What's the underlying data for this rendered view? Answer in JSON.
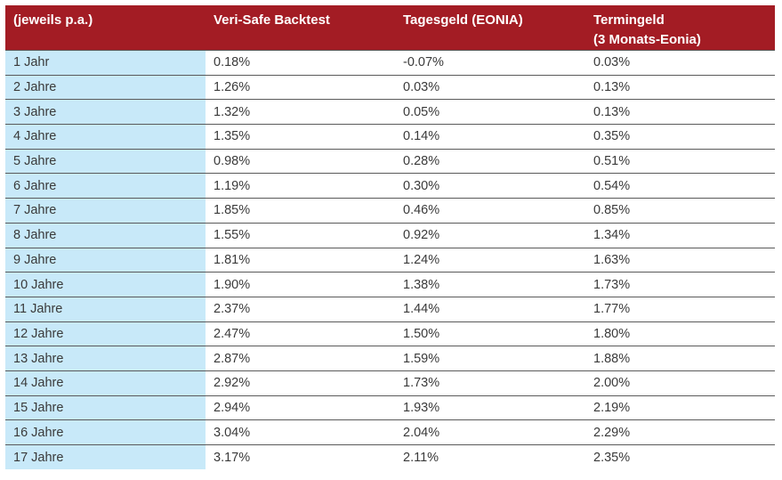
{
  "table": {
    "headers": [
      [
        "(jeweils p.a.)"
      ],
      [
        "Veri-Safe Backtest"
      ],
      [
        "Tagesgeld (EONIA)"
      ],
      [
        "Termingeld",
        "(3 Monats-Eonia)"
      ]
    ],
    "rows": [
      [
        "1 Jahr",
        "0.18%",
        "-0.07%",
        "0.03%"
      ],
      [
        "2 Jahre",
        "1.26%",
        "0.03%",
        "0.13%"
      ],
      [
        "3 Jahre",
        "1.32%",
        "0.05%",
        "0.13%"
      ],
      [
        "4 Jahre",
        "1.35%",
        "0.14%",
        "0.35%"
      ],
      [
        "5 Jahre",
        "0.98%",
        "0.28%",
        "0.51%"
      ],
      [
        "6 Jahre",
        "1.19%",
        "0.30%",
        "0.54%"
      ],
      [
        "7 Jahre",
        "1.85%",
        "0.46%",
        "0.85%"
      ],
      [
        "8 Jahre",
        "1.55%",
        "0.92%",
        "1.34%"
      ],
      [
        "9 Jahre",
        "1.81%",
        "1.24%",
        "1.63%"
      ],
      [
        "10 Jahre",
        "1.90%",
        "1.38%",
        "1.73%"
      ],
      [
        "11 Jahre",
        "2.37%",
        "1.44%",
        "1.77%"
      ],
      [
        "12 Jahre",
        "2.47%",
        "1.50%",
        "1.80%"
      ],
      [
        "13 Jahre",
        "2.87%",
        "1.59%",
        "1.88%"
      ],
      [
        "14 Jahre",
        "2.92%",
        "1.73%",
        "2.00%"
      ],
      [
        "15 Jahre",
        "2.94%",
        "1.93%",
        "2.19%"
      ],
      [
        "16 Jahre",
        "3.04%",
        "2.04%",
        "2.29%"
      ],
      [
        "17 Jahre",
        "3.17%",
        "2.11%",
        "2.35%"
      ]
    ],
    "colors": {
      "header_bg": "#a31c24",
      "header_text": "#ffffff",
      "period_bg": "#c8e9f9",
      "row_divider": "#5a5a5a",
      "cell_text": "#3a3a3a"
    }
  }
}
